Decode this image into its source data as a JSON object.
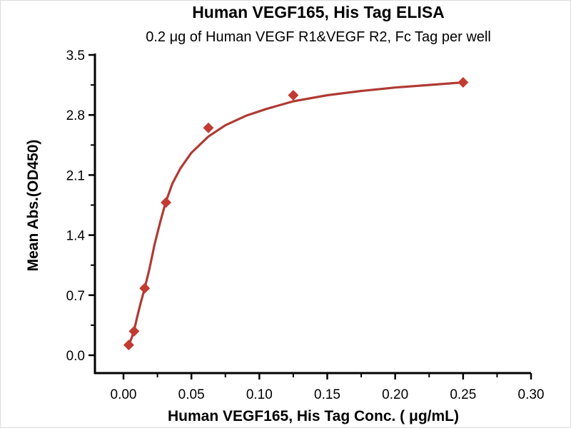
{
  "chart_data": {
    "type": "scatter",
    "title": "Human VEGF165, His Tag ELISA",
    "subtitle": "0.2 μg of Human VEGF R1&VEGF R2, Fc Tag per well",
    "xlabel": "Human VEGF165, His Tag Conc. ( μg/mL)",
    "ylabel": "Mean Abs.(OD450)",
    "xlim": [
      0,
      0.3
    ],
    "ylim": [
      0,
      3.5
    ],
    "x_ticks": [
      0,
      0.05,
      0.1,
      0.15,
      0.2,
      0.25,
      0.3
    ],
    "x_tick_labels": [
      "0.00",
      "0.05",
      "0.10",
      "0.15",
      "0.20",
      "0.25",
      "0.30"
    ],
    "y_ticks": [
      0,
      0.7,
      1.4,
      2.1,
      2.8,
      3.5
    ],
    "y_tick_labels": [
      "0.0",
      "0.7",
      "1.4",
      "2.1",
      "2.8",
      "3.5"
    ],
    "grid": false,
    "legend": null,
    "marker": "diamond",
    "points": [
      {
        "x": 0.0039,
        "y": 0.12
      },
      {
        "x": 0.0078,
        "y": 0.28
      },
      {
        "x": 0.0156,
        "y": 0.78
      },
      {
        "x": 0.0313,
        "y": 1.78
      },
      {
        "x": 0.0625,
        "y": 2.65
      },
      {
        "x": 0.125,
        "y": 3.03
      },
      {
        "x": 0.25,
        "y": 3.18
      }
    ],
    "fit_curve": [
      [
        0.0039,
        0.12
      ],
      [
        0.006,
        0.2
      ],
      [
        0.008,
        0.3
      ],
      [
        0.01,
        0.44
      ],
      [
        0.0125,
        0.6
      ],
      [
        0.0156,
        0.78
      ],
      [
        0.019,
        1.0
      ],
      [
        0.023,
        1.3
      ],
      [
        0.027,
        1.55
      ],
      [
        0.031,
        1.78
      ],
      [
        0.036,
        2.0
      ],
      [
        0.042,
        2.18
      ],
      [
        0.05,
        2.36
      ],
      [
        0.0625,
        2.55
      ],
      [
        0.075,
        2.68
      ],
      [
        0.09,
        2.79
      ],
      [
        0.105,
        2.87
      ],
      [
        0.125,
        2.96
      ],
      [
        0.15,
        3.03
      ],
      [
        0.175,
        3.08
      ],
      [
        0.2,
        3.12
      ],
      [
        0.225,
        3.15
      ],
      [
        0.25,
        3.18
      ]
    ],
    "colors": {
      "curve": "#b03a34",
      "marker": "#c23b32",
      "axis": "#000000",
      "background": "#ffffff"
    }
  }
}
